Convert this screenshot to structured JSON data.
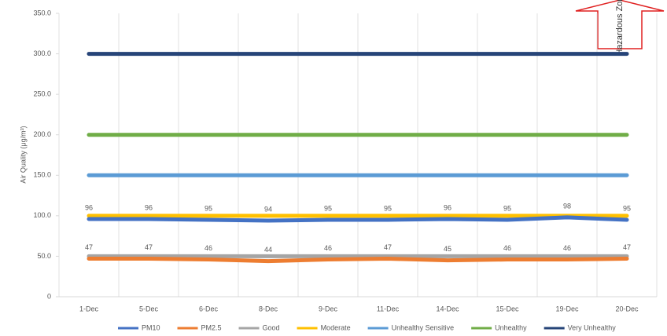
{
  "chart_data": {
    "type": "line",
    "annotation": "Hazardous Zone",
    "y_label": "Air Quality (μg/m³)",
    "categories": [
      "1-Dec",
      "5-Dec",
      "6-Dec",
      "8-Dec",
      "9-Dec",
      "11-Dec",
      "14-Dec",
      "15-Dec",
      "19-Dec",
      "20-Dec"
    ],
    "series": [
      {
        "name": "PM10",
        "color": "#4472c4",
        "labels": true,
        "values": [
          96,
          96,
          95,
          94,
          95,
          95,
          96,
          95,
          98,
          95
        ]
      },
      {
        "name": "PM2.5",
        "color": "#ed7d31",
        "labels": true,
        "values": [
          47,
          47,
          46,
          44,
          46,
          47,
          45,
          46,
          46,
          47
        ]
      },
      {
        "name": "Good",
        "color": "#a5a5a5",
        "values": [
          50,
          50,
          50,
          50,
          50,
          50,
          50,
          50,
          50,
          50
        ]
      },
      {
        "name": "Moderate",
        "color": "#ffc000",
        "values": [
          100,
          100,
          100,
          100,
          100,
          100,
          100,
          100,
          100,
          100
        ]
      },
      {
        "name": "Unhealthy Sensitive",
        "color": "#5b9bd5",
        "values": [
          150,
          150,
          150,
          150,
          150,
          150,
          150,
          150,
          150,
          150
        ]
      },
      {
        "name": "Unhealthy",
        "color": "#70ad47",
        "values": [
          200,
          200,
          200,
          200,
          200,
          200,
          200,
          200,
          200,
          200
        ]
      },
      {
        "name": "Very Unhealthy",
        "color": "#264478",
        "values": [
          300,
          300,
          300,
          300,
          300,
          300,
          300,
          300,
          300,
          300
        ]
      }
    ],
    "ylim": [
      0,
      350
    ],
    "yticks": [
      0,
      {
        "value": 50,
        "label": "50.0"
      },
      {
        "value": 100,
        "label": "100.0"
      },
      {
        "value": 150,
        "label": "150.0"
      },
      {
        "value": 200,
        "label": "200.0"
      },
      {
        "value": 250,
        "label": "250.0"
      },
      {
        "value": 300,
        "label": "300.0"
      },
      {
        "value": 350,
        "label": "350.0"
      }
    ],
    "grid": "x"
  }
}
